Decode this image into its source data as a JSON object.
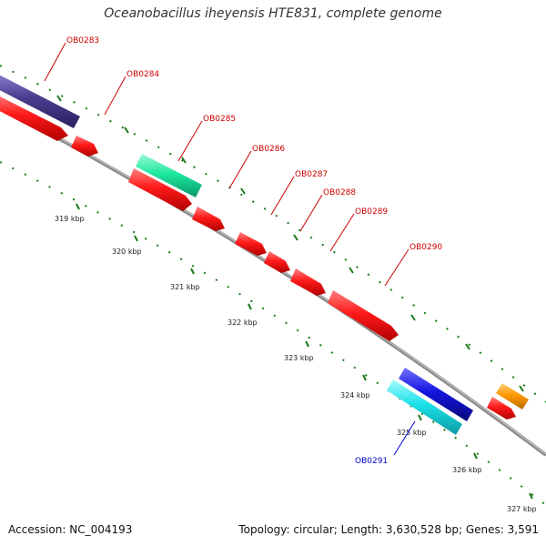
{
  "title": "Oceanobacillus iheyensis HTE831, complete genome",
  "footer": {
    "accession": "Accession: NC_004193",
    "topology": "Topology: circular; Length: 3,630,528 bp; Genes: 3,591"
  },
  "colors": {
    "gene_label_forward": "#cc0000",
    "gene_label_reverse": "#0000cc",
    "backbone": "#8c8c8c",
    "tick": "#1a7a1a",
    "cds_forward": "#ff1a1a",
    "purple_feature": "#4a3d8f",
    "green_feature": "#1de9a0",
    "blue_feature": "#1515e0",
    "cyan_feature": "#1ae0e8",
    "orange_feature": "#ff9a00"
  },
  "tick_labels": [
    "319 kbp",
    "320 kbp",
    "321 kbp",
    "322 kbp",
    "323 kbp",
    "324 kbp",
    "325 kbp",
    "326 kbp",
    "327 kbp"
  ],
  "gene_labels": [
    {
      "text": "OB0283",
      "strand": "forward"
    },
    {
      "text": "OB0284",
      "strand": "forward"
    },
    {
      "text": "OB0285",
      "strand": "forward"
    },
    {
      "text": "OB0286",
      "strand": "forward"
    },
    {
      "text": "OB0287",
      "strand": "forward"
    },
    {
      "text": "OB0288",
      "strand": "forward"
    },
    {
      "text": "OB0289",
      "strand": "forward"
    },
    {
      "text": "OB0290",
      "strand": "forward"
    },
    {
      "text": "OB0291",
      "strand": "reverse"
    }
  ]
}
